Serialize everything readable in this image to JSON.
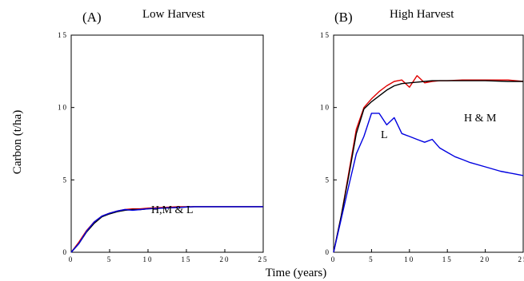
{
  "xlabel": "Time (years)",
  "ylabel": "Carbon (t/ha)",
  "colors": {
    "H": "#e00000",
    "M": "#000000",
    "L": "#0000e0"
  },
  "chart_data": [
    {
      "type": "line",
      "panel_label": "(A)",
      "title": "Low Harvest",
      "xlabel": "Time (years)",
      "ylabel": "Carbon (t/ha)",
      "xlim": [
        0,
        25
      ],
      "ylim": [
        0,
        15
      ],
      "xticks": [
        "0",
        "5",
        "10",
        "15",
        "20",
        "25"
      ],
      "yticks": [
        "0",
        "5",
        "10",
        "15"
      ],
      "annotation": "H,M & L",
      "series": [
        {
          "color": "#e00000",
          "x": [
            0,
            1,
            2,
            3,
            4,
            5,
            6,
            7,
            8,
            9,
            10,
            12,
            14,
            16,
            18,
            20,
            22,
            25
          ],
          "y": [
            0,
            0.7,
            1.5,
            2.1,
            2.5,
            2.7,
            2.85,
            2.95,
            3.0,
            3.0,
            3.05,
            3.1,
            3.15,
            3.15,
            3.15,
            3.15,
            3.15,
            3.15
          ]
        },
        {
          "color": "#000000",
          "x": [
            0,
            1,
            2,
            3,
            4,
            5,
            6,
            7,
            8,
            9,
            10,
            12,
            14,
            16,
            18,
            20,
            22,
            25
          ],
          "y": [
            0,
            0.6,
            1.4,
            2.0,
            2.45,
            2.65,
            2.8,
            2.9,
            2.95,
            2.95,
            3.0,
            3.05,
            3.1,
            3.15,
            3.15,
            3.15,
            3.15,
            3.15
          ]
        },
        {
          "color": "#0000e0",
          "x": [
            0,
            1,
            2,
            3,
            4,
            5,
            6,
            7,
            8,
            9,
            10,
            12,
            14,
            16,
            18,
            20,
            22,
            25
          ],
          "y": [
            0,
            0.6,
            1.45,
            2.1,
            2.5,
            2.7,
            2.85,
            2.95,
            2.9,
            2.95,
            3.0,
            3.05,
            3.1,
            3.15,
            3.15,
            3.15,
            3.15,
            3.15
          ]
        }
      ]
    },
    {
      "type": "line",
      "panel_label": "(B)",
      "title": "High Harvest",
      "xlabel": "Time (years)",
      "ylabel": "Carbon (t/ha)",
      "xlim": [
        0,
        25
      ],
      "ylim": [
        0,
        15
      ],
      "xticks": [
        "0",
        "5",
        "10",
        "15",
        "20",
        "25"
      ],
      "yticks": [
        "0",
        "5",
        "10",
        "15"
      ],
      "annotations": [
        "H & M",
        "L"
      ],
      "series": [
        {
          "color": "#e00000",
          "x": [
            0,
            1,
            2,
            3,
            4,
            5,
            6,
            7,
            8,
            9,
            10,
            11,
            12,
            13,
            14,
            15,
            17,
            20,
            23,
            25
          ],
          "y": [
            0,
            2.5,
            5.5,
            8.5,
            10.0,
            10.6,
            11.1,
            11.5,
            11.8,
            11.9,
            11.4,
            12.2,
            11.7,
            11.8,
            11.85,
            11.85,
            11.9,
            11.9,
            11.9,
            11.8
          ]
        },
        {
          "color": "#000000",
          "x": [
            0,
            1,
            2,
            3,
            4,
            5,
            6,
            7,
            8,
            9,
            10,
            11,
            12,
            13,
            15,
            17,
            20,
            23,
            25
          ],
          "y": [
            0,
            2.5,
            5.3,
            8.2,
            9.9,
            10.4,
            10.8,
            11.2,
            11.5,
            11.65,
            11.7,
            11.75,
            11.8,
            11.85,
            11.85,
            11.85,
            11.85,
            11.8,
            11.8
          ]
        },
        {
          "color": "#0000e0",
          "x": [
            0,
            1,
            2,
            3,
            4,
            5,
            6,
            7,
            8,
            9,
            10,
            11,
            12,
            13,
            14,
            15,
            16,
            17,
            18,
            20,
            22,
            24,
            25
          ],
          "y": [
            0,
            2.3,
            4.6,
            6.8,
            8.0,
            9.6,
            9.6,
            8.8,
            9.3,
            8.2,
            8.0,
            7.8,
            7.6,
            7.8,
            7.2,
            6.9,
            6.6,
            6.4,
            6.2,
            5.9,
            5.6,
            5.4,
            5.3
          ]
        }
      ]
    }
  ]
}
